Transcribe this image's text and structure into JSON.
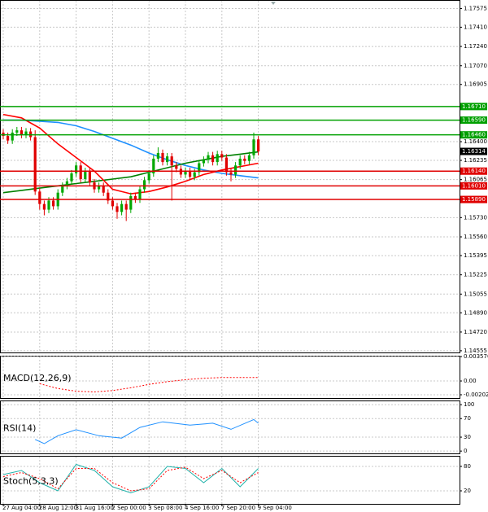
{
  "chart_data": {
    "type": "candlestick",
    "up_color": "#00a800",
    "down_color": "#e00000",
    "ylim": [
      1.1454,
      1.1765
    ],
    "yticks": [
      1.17575,
      {
        "value": 1.1741,
        "label": "1.17410"
      },
      {
        "value": 1.1724,
        "label": "1.17240"
      },
      {
        "value": 1.1707,
        "label": "1.17070"
      },
      1.16905,
      {
        "value": 1.164,
        "label": "1.16400"
      },
      1.16235,
      1.16065,
      {
        "value": 1.1573,
        "label": "1.15730"
      },
      {
        "value": 1.1556,
        "label": "1.15560"
      },
      1.15395,
      1.15225,
      1.15055,
      {
        "value": 1.1489,
        "label": "1.14890"
      },
      {
        "value": 1.1472,
        "label": "1.14720"
      },
      1.14555
    ],
    "xticks": [
      {
        "value": 0,
        "label": "27 Aug 04:00"
      },
      {
        "value": 8,
        "label": "28 Aug 12:00"
      },
      {
        "value": 16,
        "label": "31 Aug 16:00"
      },
      {
        "value": 24,
        "label": "2 Sep 00:00"
      },
      {
        "value": 32,
        "label": "3 Sep 08:00"
      },
      {
        "value": 40,
        "label": "4 Sep 16:00"
      },
      {
        "value": 48,
        "label": "7 Sep 20:00"
      },
      {
        "value": 56,
        "label": "9 Sep 04:00"
      }
    ],
    "grid": true,
    "open": [
      1.1648,
      1.1645,
      1.1641,
      1.1648,
      1.165,
      1.1646,
      1.1649,
      1.1644,
      1.1596,
      1.1585,
      1.158,
      1.1588,
      1.1583,
      1.1595,
      1.1601,
      1.1605,
      1.1612,
      1.1619,
      1.1607,
      1.1614,
      1.1604,
      1.1598,
      1.1601,
      1.1595,
      1.1588,
      1.1583,
      1.1578,
      1.1585,
      1.158,
      1.1592,
      1.1589,
      1.1598,
      1.1606,
      1.1612,
      1.1625,
      1.163,
      1.1622,
      1.1627,
      1.1619,
      1.1616,
      1.1611,
      1.1614,
      1.1609,
      1.1613,
      1.1621,
      1.1624,
      1.1628,
      1.1622,
      1.1629,
      1.1626,
      1.1613,
      1.1611,
      1.1619,
      1.1625,
      1.1623,
      1.1628,
      1.1642
    ],
    "high": [
      1.1651,
      1.1648,
      1.1651,
      1.1653,
      1.1653,
      1.1652,
      1.1652,
      1.165,
      1.1599,
      1.1588,
      1.1591,
      1.1591,
      1.1598,
      1.1604,
      1.1608,
      1.1615,
      1.1622,
      1.1622,
      1.1617,
      1.1617,
      1.1607,
      1.1604,
      1.1604,
      1.1598,
      1.1591,
      1.1586,
      1.1588,
      1.1588,
      1.1595,
      1.1595,
      1.1601,
      1.1609,
      1.1615,
      1.1628,
      1.1635,
      1.1633,
      1.163,
      1.163,
      1.1622,
      1.1619,
      1.1617,
      1.1617,
      1.1616,
      1.1624,
      1.1627,
      1.1631,
      1.1631,
      1.1632,
      1.1632,
      1.1629,
      1.1616,
      1.1622,
      1.1628,
      1.1628,
      1.1631,
      1.1648,
      1.1645
    ],
    "low": [
      1.1642,
      1.1638,
      1.1638,
      1.1645,
      1.1643,
      1.1643,
      1.1641,
      1.1593,
      1.158,
      1.1575,
      1.1577,
      1.158,
      1.158,
      1.1592,
      1.1598,
      1.1602,
      1.1609,
      1.1604,
      1.1604,
      1.1601,
      1.1595,
      1.1595,
      1.1592,
      1.1585,
      1.158,
      1.1572,
      1.1575,
      1.157,
      1.1577,
      1.1586,
      1.1586,
      1.1595,
      1.1603,
      1.1609,
      1.1622,
      1.1619,
      1.1619,
      1.1588,
      1.1613,
      1.1608,
      1.1608,
      1.1606,
      1.1606,
      1.161,
      1.1618,
      1.1621,
      1.1619,
      1.1619,
      1.1623,
      1.161,
      1.1605,
      1.1608,
      1.1616,
      1.162,
      1.162,
      1.1625,
      1.1628
    ],
    "close": [
      1.1645,
      1.1641,
      1.1648,
      1.165,
      1.1646,
      1.1649,
      1.1644,
      1.1596,
      1.1585,
      1.158,
      1.1588,
      1.1583,
      1.1595,
      1.1601,
      1.1605,
      1.1612,
      1.1619,
      1.1607,
      1.1614,
      1.1604,
      1.1598,
      1.1601,
      1.1595,
      1.1588,
      1.1583,
      1.1578,
      1.1585,
      1.158,
      1.1592,
      1.1589,
      1.1598,
      1.1606,
      1.1612,
      1.1625,
      1.163,
      1.1622,
      1.1627,
      1.1619,
      1.1616,
      1.1611,
      1.1614,
      1.1609,
      1.1613,
      1.1621,
      1.1624,
      1.1628,
      1.1622,
      1.1629,
      1.1626,
      1.1613,
      1.1611,
      1.1619,
      1.1625,
      1.1623,
      1.1628,
      1.1642,
      1.16314
    ],
    "series": [
      {
        "color": "#1e90ff",
        "x": [
          0,
          4,
          8,
          12,
          16,
          20,
          24,
          28,
          32,
          36,
          40,
          44,
          48,
          52,
          56
        ],
        "values": [
          1.1659,
          1.1659,
          1.1658,
          1.1657,
          1.1654,
          1.1649,
          1.1643,
          1.1637,
          1.163,
          1.1624,
          1.1619,
          1.1615,
          1.1612,
          1.161,
          1.1608
        ]
      },
      {
        "color": "#008000",
        "x": [
          0,
          4,
          8,
          12,
          16,
          20,
          24,
          28,
          32,
          36,
          40,
          44,
          48,
          52,
          56
        ],
        "values": [
          1.1595,
          1.1597,
          1.1599,
          1.1601,
          1.1603,
          1.1605,
          1.1607,
          1.1609,
          1.1613,
          1.1617,
          1.1621,
          1.1624,
          1.1627,
          1.1629,
          1.1631
        ]
      },
      {
        "color": "#ff0000",
        "x": [
          0,
          4,
          8,
          12,
          16,
          20,
          24,
          28,
          32,
          36,
          40,
          44,
          48,
          52,
          56
        ],
        "values": [
          1.1664,
          1.1661,
          1.1652,
          1.1638,
          1.1626,
          1.1614,
          1.1598,
          1.1594,
          1.1596,
          1.16,
          1.1605,
          1.1611,
          1.1615,
          1.1618,
          1.1621
        ]
      }
    ],
    "levels": [
      {
        "value": 1.1671,
        "label": "1.16710",
        "color": "#00a000"
      },
      {
        "value": 1.1659,
        "label": "1.16590",
        "color": "#00a000"
      },
      {
        "value": 1.1646,
        "label": "1.16460",
        "color": "#00a000"
      },
      {
        "value": 1.1614,
        "label": "1.16140",
        "color": "#e00000"
      },
      {
        "value": 1.1601,
        "label": "1.16010",
        "color": "#e00000"
      },
      {
        "value": 1.1589,
        "label": "1.15890",
        "color": "#e00000"
      }
    ],
    "current": 1.16314,
    "indicators": [
      {
        "type": "line",
        "name": "MACD(12,26,9)",
        "ylim": [
          -0.0025,
          0.0037
        ],
        "yticks": [
          0.003576,
          {
            "value": 0,
            "label": "0.00"
          },
          -0.002021
        ],
        "series": [
          {
            "color": "#ff0000",
            "dash": true,
            "x": [
              8,
              12,
              16,
              20,
              24,
              28,
              32,
              36,
              40,
              44,
              48,
              52,
              56
            ],
            "values": [
              -0.0004,
              -0.0011,
              -0.0015,
              -0.0016,
              -0.0014,
              -0.001,
              -0.0005,
              -0.0001,
              0.0002,
              0.0004,
              0.0005,
              0.0005,
              0.0005
            ]
          }
        ]
      },
      {
        "type": "line",
        "name": "RSI(14)",
        "ylim": [
          -5,
          109
        ],
        "yticks": [
          100,
          70,
          30,
          0
        ],
        "series": [
          {
            "color": "#1e90ff",
            "dash": false,
            "x": [
              7,
              9,
              12,
              16,
              21,
              26,
              30,
              35,
              41,
              46,
              50,
              55,
              56
            ],
            "values": [
              25,
              16,
              33,
              46,
              33,
              28,
              51,
              63,
              56,
              60,
              47,
              68,
              60
            ]
          }
        ]
      },
      {
        "type": "line",
        "name": "Stoch(5,3,3)",
        "ylim": [
          -12,
          106
        ],
        "yticks": [
          80,
          20
        ],
        "series": [
          {
            "color": "#20b2aa",
            "dash": false,
            "x": [
              0,
              4,
              8,
              12,
              16,
              20,
              24,
              28,
              32,
              36,
              40,
              44,
              48,
              52,
              56
            ],
            "values": [
              60,
              70,
              40,
              20,
              85,
              70,
              30,
              15,
              30,
              80,
              75,
              40,
              75,
              30,
              75
            ]
          },
          {
            "color": "#ff0000",
            "dash": true,
            "x": [
              0,
              4,
              8,
              12,
              16,
              20,
              24,
              28,
              32,
              36,
              40,
              44,
              48,
              52,
              56
            ],
            "values": [
              55,
              65,
              50,
              25,
              75,
              75,
              40,
              20,
              25,
              70,
              78,
              50,
              70,
              40,
              65
            ]
          }
        ]
      }
    ]
  }
}
